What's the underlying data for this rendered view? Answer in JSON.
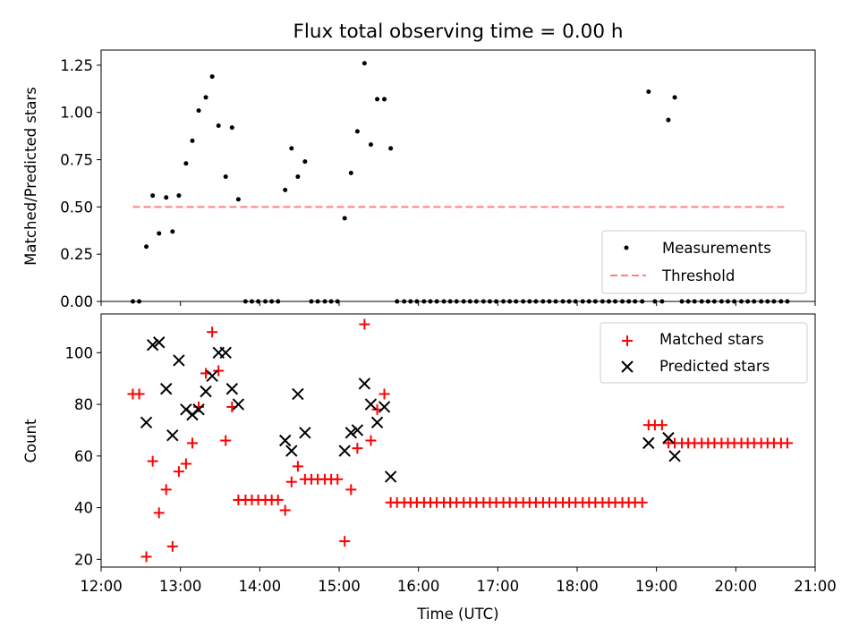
{
  "chart_data": [
    {
      "type": "scatter",
      "title": "Flux total observing time = 0.00 h",
      "xlabel": "",
      "ylabel": "Matched/Predicted stars",
      "xlim": [
        12.0,
        21.0
      ],
      "ylim": [
        0.0,
        1.33
      ],
      "yticks": [
        0.0,
        0.25,
        0.5,
        0.75,
        1.0,
        1.25
      ],
      "ytick_labels": [
        "0.00",
        "0.25",
        "0.50",
        "0.75",
        "1.00",
        "1.25"
      ],
      "legend_position": "lower-right",
      "series": [
        {
          "name": "Measurements",
          "marker": "dot",
          "color": "#000000",
          "x": [
            12.4,
            12.48,
            12.57,
            12.65,
            12.73,
            12.82,
            12.9,
            12.98,
            13.07,
            13.15,
            13.23,
            13.32,
            13.4,
            13.48,
            13.57,
            13.65,
            13.73,
            13.82,
            13.9,
            13.98,
            14.07,
            14.15,
            14.23,
            14.32,
            14.4,
            14.48,
            14.57,
            14.65,
            14.73,
            14.82,
            14.9,
            14.98,
            15.07,
            15.15,
            15.23,
            15.32,
            15.4,
            15.48,
            15.57,
            15.65,
            15.73,
            15.82,
            15.9,
            15.98,
            16.07,
            16.15,
            16.23,
            16.32,
            16.4,
            16.48,
            16.57,
            16.65,
            16.73,
            16.82,
            16.9,
            16.98,
            17.07,
            17.15,
            17.23,
            17.32,
            17.4,
            17.48,
            17.57,
            17.65,
            17.73,
            17.82,
            17.9,
            17.98,
            18.07,
            18.15,
            18.23,
            18.32,
            18.4,
            18.48,
            18.57,
            18.65,
            18.73,
            18.82,
            18.9,
            18.98,
            19.07,
            19.15,
            19.23,
            19.32,
            19.4,
            19.48,
            19.57,
            19.65,
            19.73,
            19.82,
            19.9,
            19.98,
            20.07,
            20.15,
            20.23,
            20.32,
            20.4,
            20.48,
            20.57,
            20.65
          ],
          "y": [
            0.0,
            0.0,
            0.29,
            0.56,
            0.36,
            0.55,
            0.37,
            0.56,
            0.73,
            0.85,
            1.01,
            1.08,
            1.19,
            0.93,
            0.66,
            0.92,
            0.54,
            0.0,
            0.0,
            0.0,
            0.0,
            0.0,
            0.0,
            0.59,
            0.81,
            0.66,
            0.74,
            0.0,
            0.0,
            0.0,
            0.0,
            0.0,
            0.44,
            0.68,
            0.9,
            1.26,
            0.83,
            1.07,
            1.07,
            0.81,
            0.0,
            0.0,
            0.0,
            0.0,
            0.0,
            0.0,
            0.0,
            0.0,
            0.0,
            0.0,
            0.0,
            0.0,
            0.0,
            0.0,
            0.0,
            0.0,
            0.0,
            0.0,
            0.0,
            0.0,
            0.0,
            0.0,
            0.0,
            0.0,
            0.0,
            0.0,
            0.0,
            0.0,
            0.0,
            0.0,
            0.0,
            0.0,
            0.0,
            0.0,
            0.0,
            0.0,
            0.0,
            0.0,
            1.11,
            0.0,
            0.0,
            0.96,
            1.08,
            0.0,
            0.0,
            0.0,
            0.0,
            0.0,
            0.0,
            0.0,
            0.0,
            0.0,
            0.0,
            0.0,
            0.0,
            0.0,
            0.0,
            0.0,
            0.0,
            0.0
          ]
        },
        {
          "name": "Threshold",
          "marker": "dashed-line",
          "color": "#ff8080",
          "x": [
            12.4,
            20.65
          ],
          "y": [
            0.5,
            0.5
          ]
        }
      ]
    },
    {
      "type": "scatter",
      "title": "",
      "xlabel": "Time (UTC)",
      "ylabel": "Count",
      "xlim": [
        12.0,
        21.0
      ],
      "ylim": [
        17,
        115
      ],
      "xticks": [
        12,
        13,
        14,
        15,
        16,
        17,
        18,
        19,
        20,
        21
      ],
      "xtick_labels": [
        "12:00",
        "13:00",
        "14:00",
        "15:00",
        "16:00",
        "17:00",
        "18:00",
        "19:00",
        "20:00",
        "21:00"
      ],
      "yticks": [
        20,
        40,
        60,
        80,
        100
      ],
      "ytick_labels": [
        "20",
        "40",
        "60",
        "80",
        "100"
      ],
      "legend_position": "upper-right",
      "series": [
        {
          "name": "Matched stars",
          "marker": "plus",
          "color": "#ff0000",
          "x": [
            12.4,
            12.48,
            12.57,
            12.65,
            12.73,
            12.82,
            12.9,
            12.98,
            13.07,
            13.15,
            13.23,
            13.32,
            13.4,
            13.48,
            13.57,
            13.65,
            13.73,
            13.82,
            13.9,
            13.98,
            14.07,
            14.15,
            14.23,
            14.32,
            14.4,
            14.48,
            14.57,
            14.65,
            14.73,
            14.82,
            14.9,
            14.98,
            15.07,
            15.15,
            15.23,
            15.32,
            15.4,
            15.48,
            15.57,
            15.65,
            15.73,
            15.82,
            15.9,
            15.98,
            16.07,
            16.15,
            16.23,
            16.32,
            16.4,
            16.48,
            16.57,
            16.65,
            16.73,
            16.82,
            16.9,
            16.98,
            17.07,
            17.15,
            17.23,
            17.32,
            17.4,
            17.48,
            17.57,
            17.65,
            17.73,
            17.82,
            17.9,
            17.98,
            18.07,
            18.15,
            18.23,
            18.32,
            18.4,
            18.48,
            18.57,
            18.65,
            18.73,
            18.82,
            18.9,
            18.98,
            19.07,
            19.15,
            19.23,
            19.32,
            19.4,
            19.48,
            19.57,
            19.65,
            19.73,
            19.82,
            19.9,
            19.98,
            20.07,
            20.15,
            20.23,
            20.32,
            20.4,
            20.48,
            20.57,
            20.65
          ],
          "y": [
            84,
            84,
            21,
            58,
            38,
            47,
            25,
            54,
            57,
            65,
            79,
            92,
            108,
            93,
            66,
            79,
            43,
            43,
            43,
            43,
            43,
            43,
            43,
            39,
            50,
            56,
            51,
            51,
            51,
            51,
            51,
            51,
            27,
            47,
            63,
            111,
            66,
            78,
            84,
            42,
            42,
            42,
            42,
            42,
            42,
            42,
            42,
            42,
            42,
            42,
            42,
            42,
            42,
            42,
            42,
            42,
            42,
            42,
            42,
            42,
            42,
            42,
            42,
            42,
            42,
            42,
            42,
            42,
            42,
            42,
            42,
            42,
            42,
            42,
            42,
            42,
            42,
            42,
            72,
            72,
            72,
            65,
            65,
            65,
            65,
            65,
            65,
            65,
            65,
            65,
            65,
            65,
            65,
            65,
            65,
            65,
            65,
            65,
            65,
            65
          ]
        },
        {
          "name": "Predicted stars",
          "marker": "x",
          "color": "#000000",
          "x": [
            12.57,
            12.65,
            12.73,
            12.82,
            12.9,
            12.98,
            13.07,
            13.15,
            13.23,
            13.32,
            13.4,
            13.48,
            13.57,
            13.65,
            13.73,
            14.32,
            14.4,
            14.48,
            14.57,
            15.07,
            15.15,
            15.23,
            15.32,
            15.4,
            15.48,
            15.57,
            15.65,
            18.9,
            19.15,
            19.23
          ],
          "y": [
            73,
            103,
            104,
            86,
            68,
            97,
            78,
            76,
            78,
            85,
            91,
            100,
            100,
            86,
            80,
            66,
            62,
            84,
            69,
            62,
            69,
            70,
            88,
            80,
            73,
            79,
            52,
            65,
            67,
            60
          ]
        }
      ]
    }
  ]
}
